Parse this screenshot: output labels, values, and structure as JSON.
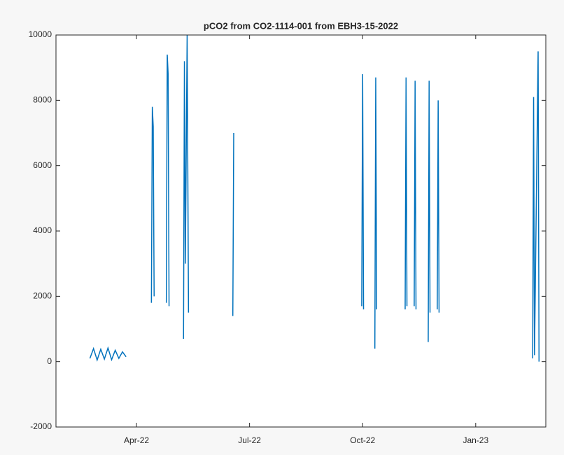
{
  "chart_data": {
    "type": "line",
    "title": "pCO2 from CO2-1114-001 from EBH3-15-2022",
    "x": [
      2022.147,
      2022.155,
      2022.163,
      2022.171,
      2022.179,
      2022.187,
      2022.195,
      2022.203,
      2022.211,
      2022.219,
      2022.227,
      2022.25,
      2022.283,
      2022.285,
      2022.287,
      2022.289,
      2022.3,
      2022.316,
      2022.318,
      2022.32,
      2022.322,
      2022.335,
      2022.354,
      2022.356,
      2022.358,
      2022.362,
      2022.365,
      2022.4,
      2022.463,
      2022.465,
      2022.6,
      2022.748,
      2022.75,
      2022.752,
      2022.76,
      2022.777,
      2022.779,
      2022.781,
      2022.8,
      2022.844,
      2022.846,
      2022.848,
      2022.855,
      2022.864,
      2022.866,
      2022.868,
      2022.88,
      2022.895,
      2022.897,
      2022.899,
      2022.905,
      2022.915,
      2022.917,
      2022.919,
      2023.0,
      2023.126,
      2023.128,
      2023.13,
      2023.138,
      2023.14
    ],
    "series": [
      {
        "color": "#0072bd",
        "values": [
          100,
          400,
          50,
          380,
          80,
          420,
          60,
          350,
          100,
          300,
          150,
          null,
          1800,
          7800,
          7200,
          2000,
          null,
          1800,
          9400,
          8800,
          1700,
          null,
          700,
          9200,
          3000,
          10000,
          1500,
          null,
          1400,
          7000,
          null,
          1700,
          8800,
          1600,
          null,
          400,
          8700,
          1600,
          null,
          1600,
          8700,
          1700,
          null,
          1700,
          8600,
          1600,
          null,
          600,
          8600,
          1500,
          null,
          1600,
          8000,
          1500,
          null,
          100,
          8100,
          200,
          9500,
          0
        ]
      }
    ],
    "xlim": [
      2022.072,
      2023.155
    ],
    "xticks": [
      {
        "value": 2022.25,
        "label": "Apr-22"
      },
      {
        "value": 2022.5,
        "label": "Jul-22"
      },
      {
        "value": 2022.75,
        "label": "Oct-22"
      },
      {
        "value": 2023.0,
        "label": "Jan-23"
      }
    ],
    "ylim": [
      -2000,
      10000
    ],
    "yticks": [
      -2000,
      0,
      2000,
      4000,
      6000,
      8000,
      10000
    ]
  }
}
